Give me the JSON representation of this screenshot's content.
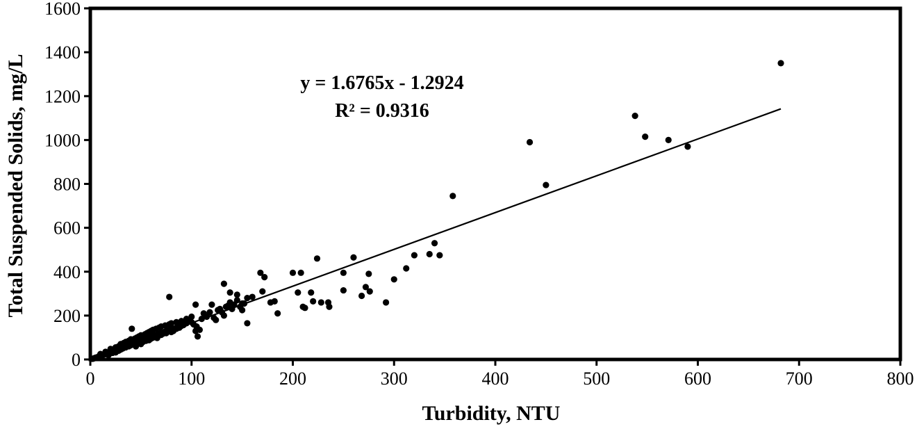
{
  "chart_data": {
    "type": "scatter",
    "xlabel": "Turbidity, NTU",
    "ylabel": "Total Suspended Solids, mg/L",
    "xlim": [
      0,
      800
    ],
    "ylim": [
      0,
      1600
    ],
    "xticks": [
      "0",
      "100",
      "200",
      "300",
      "400",
      "500",
      "600",
      "700",
      "800"
    ],
    "yticks": [
      "0",
      "200",
      "400",
      "600",
      "800",
      "1000",
      "1200",
      "1400",
      "1600"
    ],
    "grid": false,
    "legend": "none",
    "annotation": {
      "equation": "y = 1.6765x - 1.2924",
      "r2": "R² = 0.9316"
    },
    "trendline": {
      "slope": 1.6765,
      "intercept": -1.2924,
      "x_range": [
        0,
        682
      ]
    },
    "marker_color": "#000000",
    "points": [
      [
        2,
        3
      ],
      [
        3,
        4
      ],
      [
        4,
        6
      ],
      [
        5,
        8
      ],
      [
        6,
        9
      ],
      [
        7,
        10
      ],
      [
        8,
        13
      ],
      [
        9,
        15
      ],
      [
        10,
        16
      ],
      [
        11,
        18
      ],
      [
        12,
        20
      ],
      [
        13,
        22
      ],
      [
        14,
        25
      ],
      [
        15,
        24
      ],
      [
        16,
        28
      ],
      [
        17,
        29
      ],
      [
        18,
        31
      ],
      [
        19,
        33
      ],
      [
        20,
        35
      ],
      [
        21,
        34
      ],
      [
        22,
        38
      ],
      [
        23,
        40
      ],
      [
        24,
        41
      ],
      [
        25,
        44
      ],
      [
        26,
        45
      ],
      [
        27,
        47
      ],
      [
        28,
        49
      ],
      [
        29,
        50
      ],
      [
        30,
        52
      ],
      [
        31,
        53
      ],
      [
        32,
        55
      ],
      [
        33,
        56
      ],
      [
        34,
        58
      ],
      [
        35,
        60
      ],
      [
        36,
        62
      ],
      [
        37,
        63
      ],
      [
        38,
        66
      ],
      [
        39,
        67
      ],
      [
        40,
        70
      ],
      [
        41,
        71
      ],
      [
        42,
        72
      ],
      [
        43,
        74
      ],
      [
        44,
        76
      ],
      [
        45,
        78
      ],
      [
        46,
        80
      ],
      [
        47,
        81
      ],
      [
        48,
        83
      ],
      [
        49,
        84
      ],
      [
        50,
        86
      ],
      [
        51,
        88
      ],
      [
        52,
        90
      ],
      [
        53,
        91
      ],
      [
        54,
        93
      ],
      [
        55,
        95
      ],
      [
        56,
        96
      ],
      [
        57,
        98
      ],
      [
        58,
        100
      ],
      [
        59,
        101
      ],
      [
        60,
        103
      ],
      [
        61,
        105
      ],
      [
        62,
        106
      ],
      [
        63,
        108
      ],
      [
        64,
        110
      ],
      [
        65,
        112
      ],
      [
        66,
        113
      ],
      [
        67,
        115
      ],
      [
        68,
        117
      ],
      [
        69,
        118
      ],
      [
        70,
        120
      ],
      [
        71,
        122
      ],
      [
        72,
        123
      ],
      [
        73,
        125
      ],
      [
        74,
        127
      ],
      [
        75,
        129
      ],
      [
        76,
        130
      ],
      [
        77,
        132
      ],
      [
        78,
        134
      ],
      [
        80,
        136
      ],
      [
        82,
        140
      ],
      [
        84,
        143
      ],
      [
        86,
        147
      ],
      [
        88,
        150
      ],
      [
        90,
        153
      ],
      [
        92,
        157
      ],
      [
        10,
        25
      ],
      [
        15,
        35
      ],
      [
        18,
        20
      ],
      [
        20,
        48
      ],
      [
        22,
        30
      ],
      [
        25,
        55
      ],
      [
        25,
        32
      ],
      [
        28,
        60
      ],
      [
        28,
        40
      ],
      [
        30,
        70
      ],
      [
        30,
        45
      ],
      [
        32,
        50
      ],
      [
        33,
        75
      ],
      [
        35,
        80
      ],
      [
        35,
        55
      ],
      [
        38,
        85
      ],
      [
        38,
        60
      ],
      [
        40,
        92
      ],
      [
        40,
        65
      ],
      [
        42,
        70
      ],
      [
        44,
        95
      ],
      [
        45,
        60
      ],
      [
        46,
        100
      ],
      [
        48,
        105
      ],
      [
        48,
        75
      ],
      [
        50,
        110
      ],
      [
        50,
        70
      ],
      [
        52,
        80
      ],
      [
        54,
        115
      ],
      [
        55,
        85
      ],
      [
        56,
        120
      ],
      [
        58,
        88
      ],
      [
        58,
        125
      ],
      [
        60,
        95
      ],
      [
        60,
        130
      ],
      [
        62,
        100
      ],
      [
        62,
        135
      ],
      [
        64,
        105
      ],
      [
        65,
        140
      ],
      [
        66,
        98
      ],
      [
        68,
        145
      ],
      [
        68,
        110
      ],
      [
        70,
        112
      ],
      [
        70,
        150
      ],
      [
        72,
        118
      ],
      [
        74,
        155
      ],
      [
        75,
        120
      ],
      [
        76,
        125
      ],
      [
        78,
        160
      ],
      [
        80,
        125
      ],
      [
        80,
        165
      ],
      [
        82,
        130
      ],
      [
        85,
        170
      ],
      [
        85,
        140
      ],
      [
        88,
        145
      ],
      [
        90,
        175
      ],
      [
        92,
        160
      ],
      [
        95,
        165
      ],
      [
        95,
        185
      ],
      [
        98,
        180
      ],
      [
        100,
        170
      ],
      [
        100,
        195
      ],
      [
        102,
        160
      ],
      [
        104,
        130
      ],
      [
        105,
        150
      ],
      [
        106,
        105
      ],
      [
        108,
        135
      ],
      [
        110,
        185
      ],
      [
        112,
        210
      ],
      [
        115,
        195
      ],
      [
        118,
        215
      ],
      [
        120,
        250
      ],
      [
        122,
        190
      ],
      [
        124,
        180
      ],
      [
        126,
        225
      ],
      [
        128,
        230
      ],
      [
        130,
        215
      ],
      [
        132,
        200
      ],
      [
        134,
        240
      ],
      [
        136,
        245
      ],
      [
        138,
        260
      ],
      [
        140,
        230
      ],
      [
        142,
        250
      ],
      [
        145,
        270
      ],
      [
        148,
        240
      ],
      [
        150,
        225
      ],
      [
        152,
        255
      ],
      [
        155,
        280
      ],
      [
        41,
        140
      ],
      [
        78,
        285
      ],
      [
        104,
        250
      ],
      [
        132,
        345
      ],
      [
        138,
        305
      ],
      [
        145,
        295
      ],
      [
        150,
        255
      ],
      [
        155,
        165
      ],
      [
        160,
        285
      ],
      [
        168,
        395
      ],
      [
        170,
        310
      ],
      [
        172,
        375
      ],
      [
        178,
        260
      ],
      [
        182,
        265
      ],
      [
        185,
        210
      ],
      [
        200,
        395
      ],
      [
        205,
        305
      ],
      [
        208,
        395
      ],
      [
        210,
        240
      ],
      [
        212,
        235
      ],
      [
        218,
        305
      ],
      [
        220,
        265
      ],
      [
        224,
        460
      ],
      [
        228,
        260
      ],
      [
        235,
        260
      ],
      [
        236,
        240
      ],
      [
        250,
        395
      ],
      [
        250,
        315
      ],
      [
        260,
        465
      ],
      [
        268,
        290
      ],
      [
        272,
        330
      ],
      [
        275,
        390
      ],
      [
        276,
        310
      ],
      [
        292,
        260
      ],
      [
        300,
        365
      ],
      [
        312,
        415
      ],
      [
        320,
        475
      ],
      [
        335,
        480
      ],
      [
        340,
        530
      ],
      [
        345,
        475
      ],
      [
        358,
        745
      ],
      [
        434,
        990
      ],
      [
        450,
        795
      ],
      [
        538,
        1110
      ],
      [
        548,
        1015
      ],
      [
        571,
        1000
      ],
      [
        590,
        970
      ],
      [
        682,
        1350
      ]
    ]
  }
}
